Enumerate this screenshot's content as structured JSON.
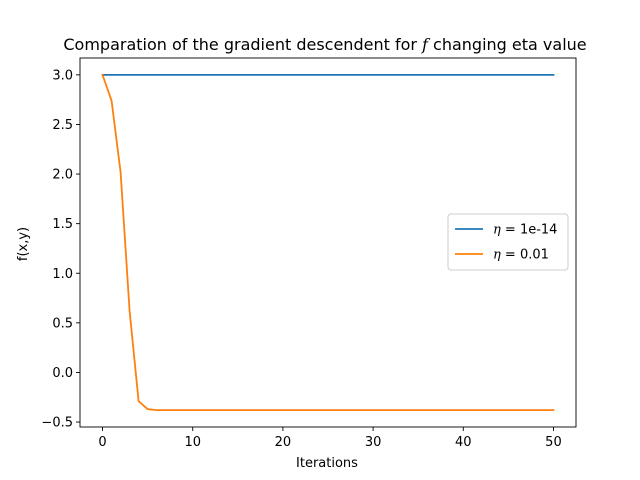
{
  "chart_data": {
    "type": "line",
    "title": "Comparation of the gradient descendent for f changing eta value",
    "title_parts": {
      "before": "Comparation of the gradient descendent for ",
      "italic": "f",
      "after": " changing eta value"
    },
    "xlabel": "Iterations",
    "ylabel": "f(x,y)",
    "xlim": [
      -2.5,
      52.5
    ],
    "ylim": [
      -0.55,
      3.17
    ],
    "xticks": [
      0,
      10,
      20,
      30,
      40,
      50
    ],
    "xtick_labels": [
      "0",
      "10",
      "20",
      "30",
      "40",
      "50"
    ],
    "yticks": [
      -0.5,
      0.0,
      0.5,
      1.0,
      1.5,
      2.0,
      2.5,
      3.0
    ],
    "ytick_labels": [
      "−0.5",
      "0.0",
      "0.5",
      "1.0",
      "1.5",
      "2.0",
      "2.5",
      "3.0"
    ],
    "grid": false,
    "legend_position": "center-right",
    "series": [
      {
        "name": "η = 1e-14",
        "legend_symbol": "η",
        "legend_rest": " = 1e-14",
        "color": "#1f77b4",
        "x": [
          0,
          50
        ],
        "y": [
          3.0,
          3.0
        ]
      },
      {
        "name": "η = 0.01",
        "legend_symbol": "η",
        "legend_rest": " = 0.01",
        "color": "#ff7f0e",
        "x": [
          0,
          1,
          2,
          3,
          4,
          5,
          6,
          7,
          8,
          9,
          10,
          15,
          20,
          25,
          30,
          35,
          40,
          45,
          50
        ],
        "y": [
          3.0,
          2.74,
          2.02,
          0.62,
          -0.29,
          -0.37,
          -0.38,
          -0.38,
          -0.38,
          -0.38,
          -0.38,
          -0.38,
          -0.38,
          -0.38,
          -0.38,
          -0.38,
          -0.38,
          -0.38,
          -0.38
        ]
      }
    ]
  }
}
